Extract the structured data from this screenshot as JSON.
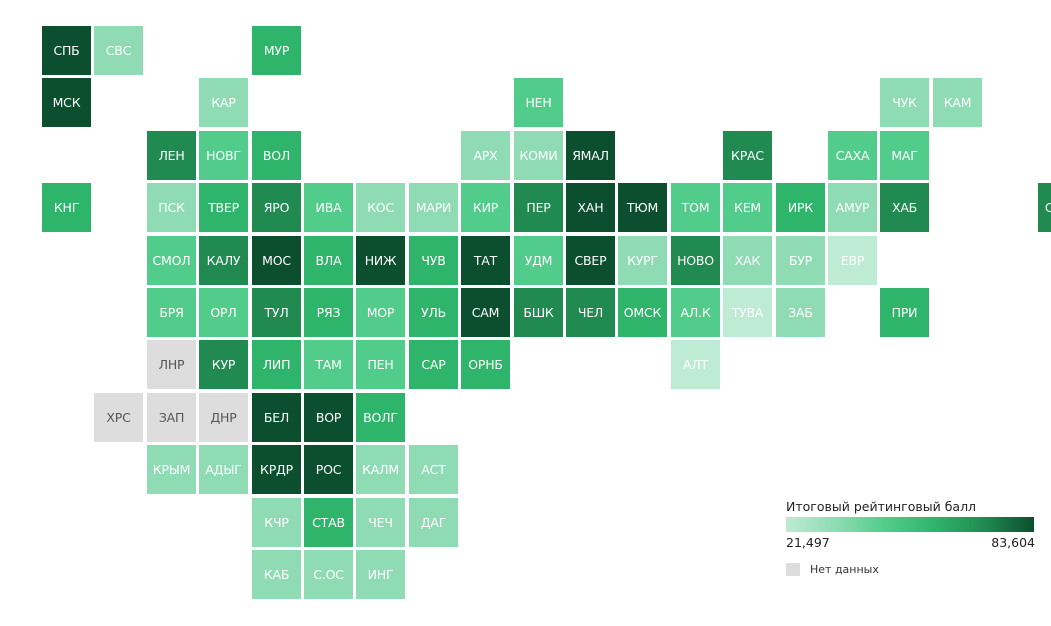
{
  "colors": {
    "scale": [
      "#bdebd3",
      "#8fdcb4",
      "#52cc8a",
      "#2fb46c",
      "#208a51",
      "#0b4f2e"
    ],
    "no_data": "#dddddd",
    "text_light": "#ffffff",
    "text_dark": "#555555"
  },
  "legend": {
    "title": "Итоговый рейтинговый балл",
    "min_label": "21,497",
    "max_label": "83,604",
    "no_data_label": "Нет данных"
  },
  "regions": [
    {
      "label": "СПБ",
      "row": 0,
      "col": 0,
      "level": 5
    },
    {
      "label": "СВС",
      "row": 0,
      "col": 1,
      "level": 1
    },
    {
      "label": "МУР",
      "row": 0,
      "col": 4,
      "level": 3
    },
    {
      "label": "МСК",
      "row": 1,
      "col": 0,
      "level": 5
    },
    {
      "label": "КАР",
      "row": 1,
      "col": 3,
      "level": 1
    },
    {
      "label": "НЕН",
      "row": 1,
      "col": 9,
      "level": 2
    },
    {
      "label": "ЧУК",
      "row": 1,
      "col": 16,
      "level": 1
    },
    {
      "label": "КАМ",
      "row": 1,
      "col": 17,
      "level": 1
    },
    {
      "label": "ЛЕН",
      "row": 2,
      "col": 2,
      "level": 4
    },
    {
      "label": "НОВГ",
      "row": 2,
      "col": 3,
      "level": 2
    },
    {
      "label": "ВОЛ",
      "row": 2,
      "col": 4,
      "level": 3
    },
    {
      "label": "АРХ",
      "row": 2,
      "col": 8,
      "level": 1
    },
    {
      "label": "КОМИ",
      "row": 2,
      "col": 9,
      "level": 1
    },
    {
      "label": "ЯМАЛ",
      "row": 2,
      "col": 10,
      "level": 5
    },
    {
      "label": "КРАС",
      "row": 2,
      "col": 13,
      "level": 4
    },
    {
      "label": "САХА",
      "row": 2,
      "col": 15,
      "level": 2
    },
    {
      "label": "МАГ",
      "row": 2,
      "col": 16,
      "level": 2
    },
    {
      "label": "КНГ",
      "row": 3,
      "col": 0,
      "level": 3
    },
    {
      "label": "ПСК",
      "row": 3,
      "col": 2,
      "level": 1
    },
    {
      "label": "ТВЕР",
      "row": 3,
      "col": 3,
      "level": 3
    },
    {
      "label": "ЯРО",
      "row": 3,
      "col": 4,
      "level": 4
    },
    {
      "label": "ИВА",
      "row": 3,
      "col": 5,
      "level": 2
    },
    {
      "label": "КОС",
      "row": 3,
      "col": 6,
      "level": 1
    },
    {
      "label": "МАРИ",
      "row": 3,
      "col": 7,
      "level": 1
    },
    {
      "label": "КИР",
      "row": 3,
      "col": 8,
      "level": 2
    },
    {
      "label": "ПЕР",
      "row": 3,
      "col": 9,
      "level": 4
    },
    {
      "label": "ХАН",
      "row": 3,
      "col": 10,
      "level": 5
    },
    {
      "label": "ТЮМ",
      "row": 3,
      "col": 11,
      "level": 5
    },
    {
      "label": "ТОМ",
      "row": 3,
      "col": 12,
      "level": 2
    },
    {
      "label": "КЕМ",
      "row": 3,
      "col": 13,
      "level": 2
    },
    {
      "label": "ИРК",
      "row": 3,
      "col": 14,
      "level": 3
    },
    {
      "label": "АМУР",
      "row": 3,
      "col": 15,
      "level": 1
    },
    {
      "label": "ХАБ",
      "row": 3,
      "col": 16,
      "level": 4
    },
    {
      "label": "СХЛН",
      "row": 3,
      "col": 19,
      "level": 4
    },
    {
      "label": "СМОЛ",
      "row": 4,
      "col": 2,
      "level": 2
    },
    {
      "label": "КАЛУ",
      "row": 4,
      "col": 3,
      "level": 4
    },
    {
      "label": "МОС",
      "row": 4,
      "col": 4,
      "level": 5
    },
    {
      "label": "ВЛА",
      "row": 4,
      "col": 5,
      "level": 3
    },
    {
      "label": "НИЖ",
      "row": 4,
      "col": 6,
      "level": 5
    },
    {
      "label": "ЧУВ",
      "row": 4,
      "col": 7,
      "level": 3
    },
    {
      "label": "ТАТ",
      "row": 4,
      "col": 8,
      "level": 5
    },
    {
      "label": "УДМ",
      "row": 4,
      "col": 9,
      "level": 2
    },
    {
      "label": "СВЕР",
      "row": 4,
      "col": 10,
      "level": 5
    },
    {
      "label": "КУРГ",
      "row": 4,
      "col": 11,
      "level": 1
    },
    {
      "label": "НОВО",
      "row": 4,
      "col": 12,
      "level": 4
    },
    {
      "label": "ХАК",
      "row": 4,
      "col": 13,
      "level": 1
    },
    {
      "label": "БУР",
      "row": 4,
      "col": 14,
      "level": 1
    },
    {
      "label": "ЕВР",
      "row": 4,
      "col": 15,
      "level": 0
    },
    {
      "label": "БРЯ",
      "row": 5,
      "col": 2,
      "level": 2
    },
    {
      "label": "ОРЛ",
      "row": 5,
      "col": 3,
      "level": 2
    },
    {
      "label": "ТУЛ",
      "row": 5,
      "col": 4,
      "level": 4
    },
    {
      "label": "РЯЗ",
      "row": 5,
      "col": 5,
      "level": 3
    },
    {
      "label": "МОР",
      "row": 5,
      "col": 6,
      "level": 2
    },
    {
      "label": "УЛЬ",
      "row": 5,
      "col": 7,
      "level": 3
    },
    {
      "label": "САМ",
      "row": 5,
      "col": 8,
      "level": 5
    },
    {
      "label": "БШК",
      "row": 5,
      "col": 9,
      "level": 4
    },
    {
      "label": "ЧЕЛ",
      "row": 5,
      "col": 10,
      "level": 4
    },
    {
      "label": "ОМСК",
      "row": 5,
      "col": 11,
      "level": 3
    },
    {
      "label": "АЛ.К",
      "row": 5,
      "col": 12,
      "level": 2
    },
    {
      "label": "ТУВА",
      "row": 5,
      "col": 13,
      "level": 0
    },
    {
      "label": "ЗАБ",
      "row": 5,
      "col": 14,
      "level": 1
    },
    {
      "label": "ПРИ",
      "row": 5,
      "col": 16,
      "level": 3
    },
    {
      "label": "ЛНР",
      "row": 6,
      "col": 2,
      "level": -1
    },
    {
      "label": "КУР",
      "row": 6,
      "col": 3,
      "level": 4
    },
    {
      "label": "ЛИП",
      "row": 6,
      "col": 4,
      "level": 3
    },
    {
      "label": "ТАМ",
      "row": 6,
      "col": 5,
      "level": 2
    },
    {
      "label": "ПЕН",
      "row": 6,
      "col": 6,
      "level": 2
    },
    {
      "label": "САР",
      "row": 6,
      "col": 7,
      "level": 3
    },
    {
      "label": "ОРНБ",
      "row": 6,
      "col": 8,
      "level": 3
    },
    {
      "label": "АЛТ",
      "row": 6,
      "col": 12,
      "level": 0
    },
    {
      "label": "ХРС",
      "row": 7,
      "col": 1,
      "level": -1
    },
    {
      "label": "ЗАП",
      "row": 7,
      "col": 2,
      "level": -1
    },
    {
      "label": "ДНР",
      "row": 7,
      "col": 3,
      "level": -1
    },
    {
      "label": "БЕЛ",
      "row": 7,
      "col": 4,
      "level": 5
    },
    {
      "label": "ВОР",
      "row": 7,
      "col": 5,
      "level": 5
    },
    {
      "label": "ВОЛГ",
      "row": 7,
      "col": 6,
      "level": 3
    },
    {
      "label": "КРЫМ",
      "row": 8,
      "col": 2,
      "level": 1
    },
    {
      "label": "АДЫГ",
      "row": 8,
      "col": 3,
      "level": 1
    },
    {
      "label": "КРДР",
      "row": 8,
      "col": 4,
      "level": 5
    },
    {
      "label": "РОС",
      "row": 8,
      "col": 5,
      "level": 5
    },
    {
      "label": "КАЛМ",
      "row": 8,
      "col": 6,
      "level": 1
    },
    {
      "label": "АСТ",
      "row": 8,
      "col": 7,
      "level": 1
    },
    {
      "label": "КЧР",
      "row": 9,
      "col": 4,
      "level": 1
    },
    {
      "label": "СТАВ",
      "row": 9,
      "col": 5,
      "level": 3
    },
    {
      "label": "ЧЕЧ",
      "row": 9,
      "col": 6,
      "level": 1
    },
    {
      "label": "ДАГ",
      "row": 9,
      "col": 7,
      "level": 1
    },
    {
      "label": "КАБ",
      "row": 10,
      "col": 4,
      "level": 1
    },
    {
      "label": "С.ОС",
      "row": 10,
      "col": 5,
      "level": 1
    },
    {
      "label": "ИНГ",
      "row": 10,
      "col": 6,
      "level": 1
    }
  ]
}
